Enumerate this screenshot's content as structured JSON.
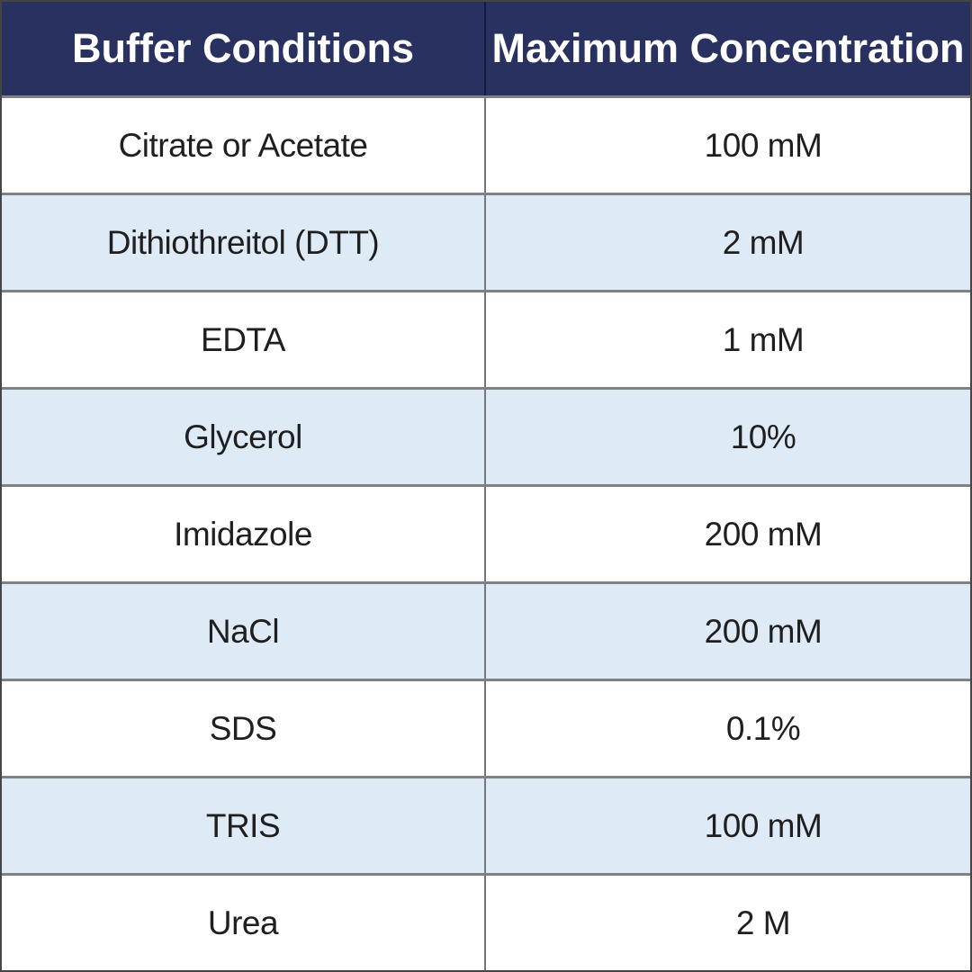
{
  "chart_data": {
    "type": "table",
    "columns": [
      "Buffer Conditions",
      "Maximum Concentration"
    ],
    "rows": [
      [
        "Citrate or Acetate",
        "100 mM"
      ],
      [
        "Dithiothreitol (DTT)",
        "2 mM"
      ],
      [
        "EDTA",
        "1 mM"
      ],
      [
        "Glycerol",
        "10%"
      ],
      [
        "Imidazole",
        "200 mM"
      ],
      [
        "NaCl",
        "200 mM"
      ],
      [
        "SDS",
        "0.1%"
      ],
      [
        "TRIS",
        "100 mM"
      ],
      [
        "Urea",
        "2 M"
      ]
    ],
    "layout": {
      "header_position": "top",
      "striped_rows": "even rows light blue, odd rows white",
      "grid": "gray horizontal and vertical rules"
    }
  },
  "colors": {
    "header_bg": "#293161",
    "header_text": "#FFFFFF",
    "header_divider": "#141B3E",
    "stripe_bg": "#DEEBF7",
    "row_bg": "#FFFFFF",
    "grid_line": "#7F8184",
    "outer_border": "#454545",
    "body_text": "#1F1F1F"
  }
}
